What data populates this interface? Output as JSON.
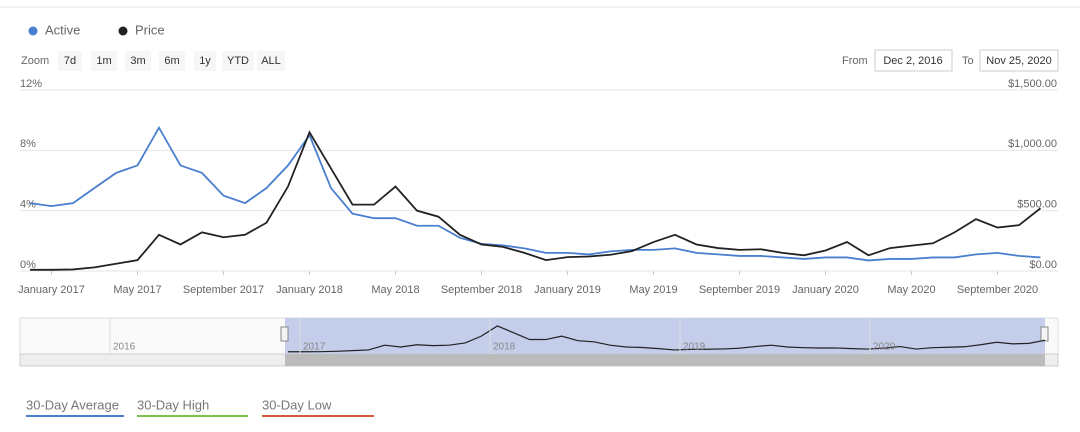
{
  "chart_data": {
    "type": "line",
    "x": [
      "2016-12",
      "2017-01",
      "2017-02",
      "2017-03",
      "2017-04",
      "2017-05",
      "2017-06",
      "2017-07",
      "2017-08",
      "2017-09",
      "2017-10",
      "2017-11",
      "2017-12",
      "2018-01",
      "2018-02",
      "2018-03",
      "2018-04",
      "2018-05",
      "2018-06",
      "2018-07",
      "2018-08",
      "2018-09",
      "2018-10",
      "2018-11",
      "2018-12",
      "2019-01",
      "2019-02",
      "2019-03",
      "2019-04",
      "2019-05",
      "2019-06",
      "2019-07",
      "2019-08",
      "2019-09",
      "2019-10",
      "2019-11",
      "2019-12",
      "2020-01",
      "2020-02",
      "2020-03",
      "2020-04",
      "2020-05",
      "2020-06",
      "2020-07",
      "2020-08",
      "2020-09",
      "2020-10",
      "2020-11"
    ],
    "series": [
      {
        "name": "Active",
        "color": "#4a7fcf",
        "axis": "y",
        "values": [
          4.5,
          4.3,
          4.5,
          5.5,
          6.5,
          7.0,
          9.5,
          7.0,
          6.5,
          5.0,
          4.5,
          5.5,
          7.0,
          9.0,
          5.5,
          3.8,
          3.5,
          3.5,
          3.0,
          3.0,
          2.2,
          1.8,
          1.7,
          1.5,
          1.2,
          1.2,
          1.1,
          1.3,
          1.4,
          1.4,
          1.5,
          1.2,
          1.1,
          1.0,
          1.0,
          0.9,
          0.8,
          0.9,
          0.9,
          0.7,
          0.8,
          0.8,
          0.9,
          0.9,
          1.1,
          1.2,
          1.0,
          0.9
        ]
      },
      {
        "name": "Price",
        "color": "#222222",
        "axis": "y2",
        "values": [
          10,
          10,
          13,
          30,
          60,
          90,
          300,
          220,
          320,
          280,
          300,
          400,
          700,
          1150,
          850,
          550,
          550,
          700,
          500,
          450,
          300,
          220,
          200,
          150,
          90,
          115,
          120,
          135,
          165,
          240,
          300,
          220,
          190,
          175,
          180,
          150,
          130,
          170,
          240,
          130,
          190,
          210,
          230,
          320,
          430,
          360,
          380,
          520
        ]
      }
    ],
    "xticks": [
      {
        "value": "2017-01",
        "label": "January 2017"
      },
      {
        "value": "2017-05",
        "label": "May 2017"
      },
      {
        "value": "2017-09",
        "label": "September 2017"
      },
      {
        "value": "2018-01",
        "label": "January 2018"
      },
      {
        "value": "2018-05",
        "label": "May 2018"
      },
      {
        "value": "2018-09",
        "label": "September 2018"
      },
      {
        "value": "2019-01",
        "label": "January 2019"
      },
      {
        "value": "2019-05",
        "label": "May 2019"
      },
      {
        "value": "2019-09",
        "label": "September 2019"
      },
      {
        "value": "2020-01",
        "label": "January 2020"
      },
      {
        "value": "2020-05",
        "label": "May 2020"
      },
      {
        "value": "2020-09",
        "label": "September 2020"
      }
    ],
    "ylim": [
      0,
      12
    ],
    "yticks": [
      {
        "value": 0,
        "label": "0%"
      },
      {
        "value": 4,
        "label": "4%"
      },
      {
        "value": 8,
        "label": "8%"
      },
      {
        "value": 12,
        "label": "12%"
      }
    ],
    "y2lim": [
      0,
      1500
    ],
    "y2ticks": [
      {
        "value": 0,
        "label": "$0.00"
      },
      {
        "value": 500,
        "label": "$500.00"
      },
      {
        "value": 1000,
        "label": "$1,000.00"
      },
      {
        "value": 1500,
        "label": "$1,500.00"
      }
    ],
    "grid": true
  },
  "ui": {
    "zoom_label": "Zoom",
    "zoom_buttons": [
      "7d",
      "1m",
      "3m",
      "6m",
      "1y",
      "YTD",
      "ALL"
    ],
    "from_label": "From",
    "from_value": "Dec 2, 2016",
    "to_label": "To",
    "to_value": "Nov 25, 2020",
    "navigator_years": [
      "2016",
      "2017",
      "2018",
      "2019",
      "2020"
    ],
    "stats": [
      "30-Day Average",
      "30-Day High",
      "30-Day Low"
    ]
  }
}
